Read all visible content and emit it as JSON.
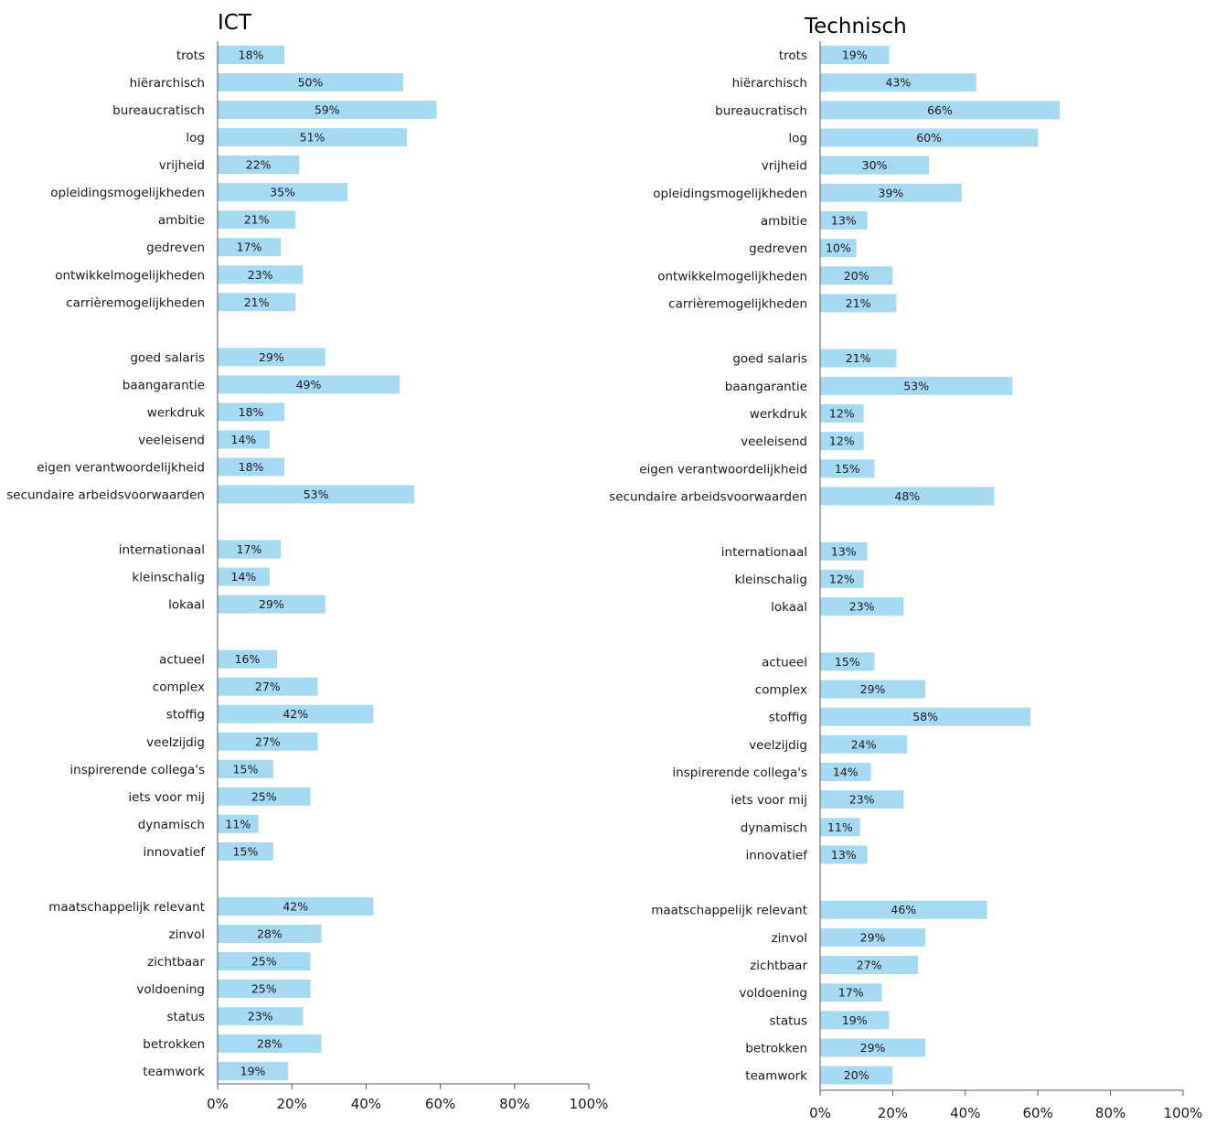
{
  "chart_data": [
    {
      "type": "bar",
      "orientation": "horizontal",
      "title": "ICT",
      "categories": [
        "trots",
        "hiërarchisch",
        "bureaucratisch",
        "log",
        "vrijheid",
        "opleidingsmogelijkheden",
        "ambitie",
        "gedreven",
        "ontwikkelmogelijkheden",
        "carrièremogelijkheden",
        "",
        "goed salaris",
        "baangarantie",
        "werkdruk",
        "veeleisend",
        "eigen verantwoordelijkheid",
        "secundaire arbeidsvoorwaarden",
        "",
        "internationaal",
        "kleinschalig",
        "lokaal",
        "",
        "actueel",
        "complex",
        "stoffig",
        "veelzijdig",
        "inspirerende collega's",
        "iets voor mij",
        "dynamisch",
        "innovatief",
        "",
        "maatschappelijk relevant",
        "zinvol",
        "zichtbaar",
        "voldoening",
        "status",
        "betrokken",
        "teamwork"
      ],
      "values": [
        18,
        50,
        59,
        51,
        22,
        35,
        21,
        17,
        23,
        21,
        null,
        29,
        49,
        18,
        14,
        18,
        53,
        null,
        17,
        14,
        29,
        null,
        16,
        27,
        42,
        27,
        15,
        25,
        11,
        15,
        null,
        42,
        28,
        25,
        25,
        23,
        28,
        19
      ],
      "data_labels": [
        "18%",
        "50%",
        "59%",
        "51%",
        "22%",
        "35%",
        "21%",
        "17%",
        "23%",
        "21%",
        "",
        "29%",
        "49%",
        "18%",
        "14%",
        "18%",
        "53%",
        "",
        "17%",
        "14%",
        "29%",
        "",
        "16%",
        "27%",
        "42%",
        "27%",
        "15%",
        "25%",
        "11%",
        "15%",
        "",
        "42%",
        "28%",
        "25%",
        "25%",
        "23%",
        "28%",
        "19%"
      ],
      "xlim": [
        0,
        100
      ],
      "x_ticks": [
        "0%",
        "20%",
        "40%",
        "60%",
        "80%",
        "100%"
      ],
      "bar_color": "#a6d9f2",
      "grid": false,
      "legend": "none"
    },
    {
      "type": "bar",
      "orientation": "horizontal",
      "title": "Technisch",
      "categories": [
        "trots",
        "hiërarchisch",
        "bureaucratisch",
        "log",
        "vrijheid",
        "opleidingsmogelijkheden",
        "ambitie",
        "gedreven",
        "ontwikkelmogelijkheden",
        "carrièremogelijkheden",
        "",
        "goed salaris",
        "baangarantie",
        "werkdruk",
        "veeleisend",
        "eigen verantwoordelijkheid",
        "secundaire arbeidsvoorwaarden",
        "",
        "internationaal",
        "kleinschalig",
        "lokaal",
        "",
        "actueel",
        "complex",
        "stoffig",
        "veelzijdig",
        "inspirerende collega's",
        "iets voor mij",
        "dynamisch",
        "innovatief",
        "",
        "maatschappelijk relevant",
        "zinvol",
        "zichtbaar",
        "voldoening",
        "status",
        "betrokken",
        "teamwork"
      ],
      "values": [
        19,
        43,
        66,
        60,
        30,
        39,
        13,
        10,
        20,
        21,
        null,
        21,
        53,
        12,
        12,
        15,
        48,
        null,
        13,
        12,
        23,
        null,
        15,
        29,
        58,
        24,
        14,
        23,
        11,
        13,
        null,
        46,
        29,
        27,
        17,
        19,
        29,
        20
      ],
      "data_labels": [
        "19%",
        "43%",
        "66%",
        "60%",
        "30%",
        "39%",
        "13%",
        "10%",
        "20%",
        "21%",
        "",
        "21%",
        "53%",
        "12%",
        "12%",
        "15%",
        "48%",
        "",
        "13%",
        "12%",
        "23%",
        "",
        "15%",
        "29%",
        "58%",
        "24%",
        "14%",
        "23%",
        "11%",
        "13%",
        "",
        "46%",
        "29%",
        "27%",
        "17%",
        "19%",
        "29%",
        "20%"
      ],
      "xlim": [
        0,
        100
      ],
      "x_ticks": [
        "0%",
        "20%",
        "40%",
        "60%",
        "80%",
        "100%"
      ],
      "bar_color": "#a6d9f2",
      "grid": false,
      "legend": "none"
    }
  ]
}
